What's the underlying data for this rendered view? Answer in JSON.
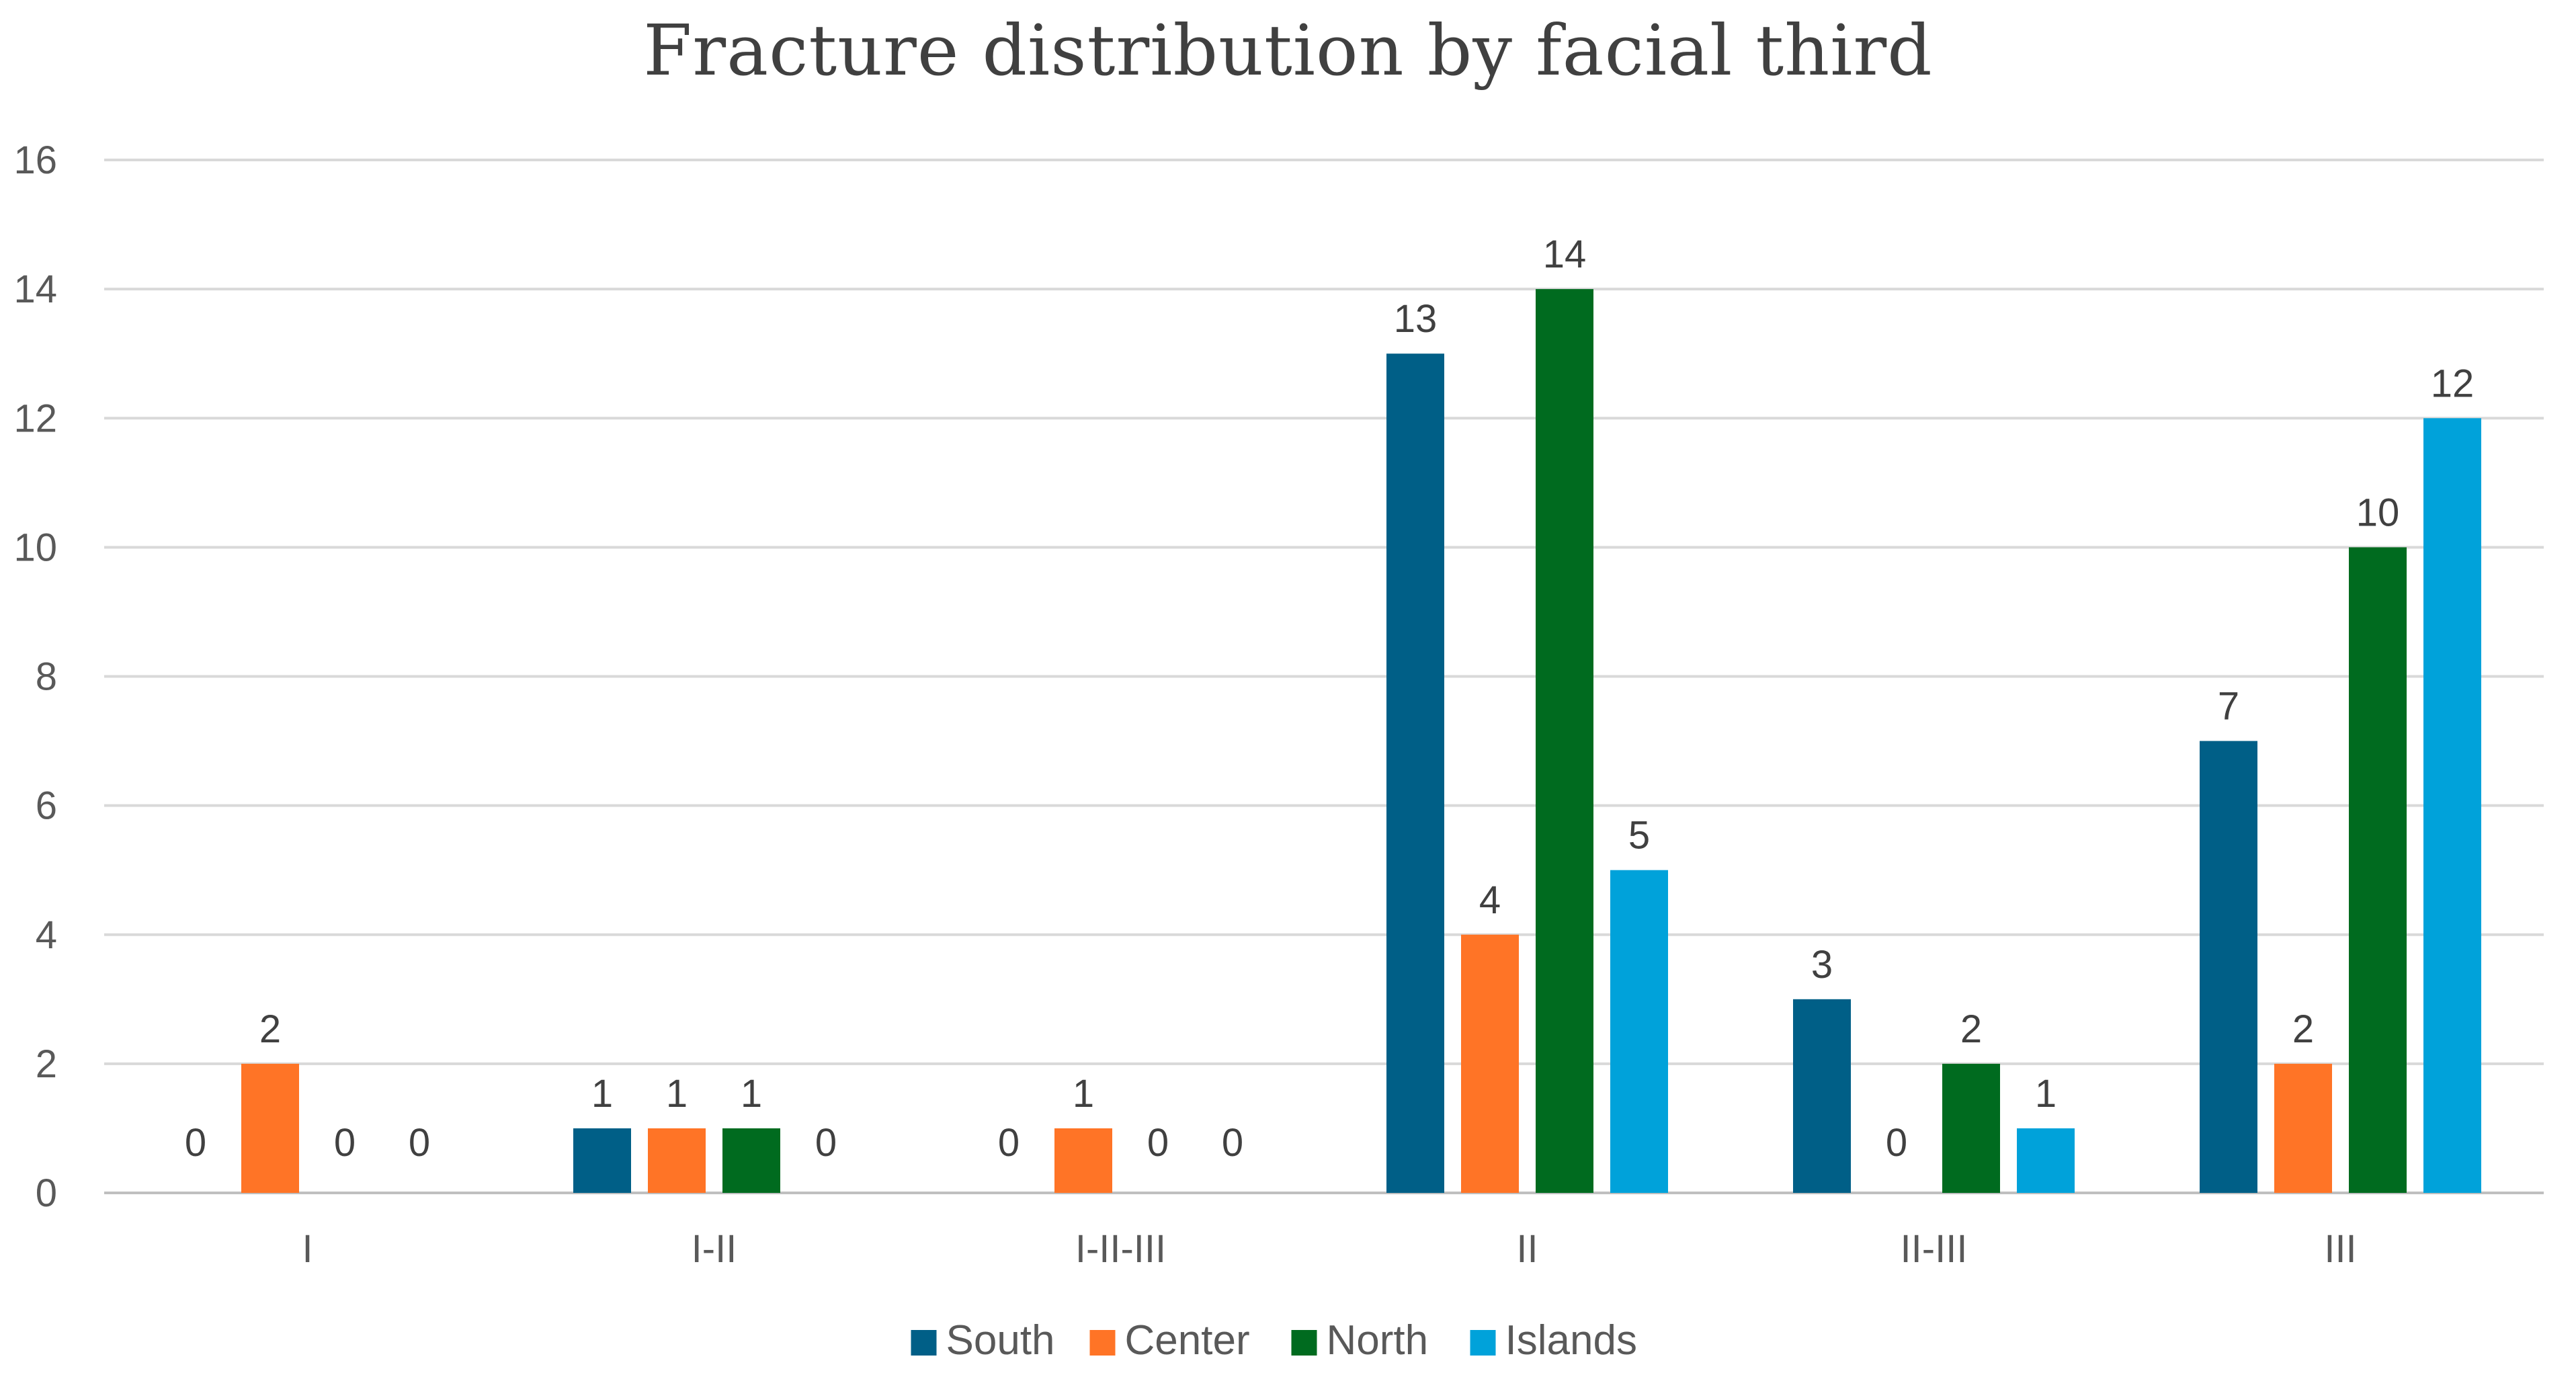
{
  "chart_data": {
    "type": "bar",
    "title": "Fracture distribution by facial third",
    "xlabel": "",
    "ylabel": "",
    "categories": [
      "I",
      "I-II",
      "I-II-III",
      "II",
      "II-III",
      "III"
    ],
    "series": [
      {
        "name": "South",
        "color": "#005F87",
        "values": [
          0,
          1,
          0,
          13,
          3,
          7
        ]
      },
      {
        "name": "Center",
        "color": "#FF7426",
        "values": [
          2,
          1,
          1,
          4,
          0,
          2
        ]
      },
      {
        "name": "North",
        "color": "#006B1F",
        "values": [
          0,
          1,
          0,
          14,
          2,
          10
        ]
      },
      {
        "name": "Islands",
        "color": "#00A2DA",
        "values": [
          0,
          0,
          0,
          5,
          1,
          12
        ]
      }
    ],
    "ylim": [
      0,
      16
    ],
    "yticks": [
      "0",
      "2",
      "4",
      "6",
      "8",
      "10",
      "12",
      "14",
      "16"
    ],
    "grid": true,
    "data_labels": true,
    "legend_position": "bottom"
  }
}
